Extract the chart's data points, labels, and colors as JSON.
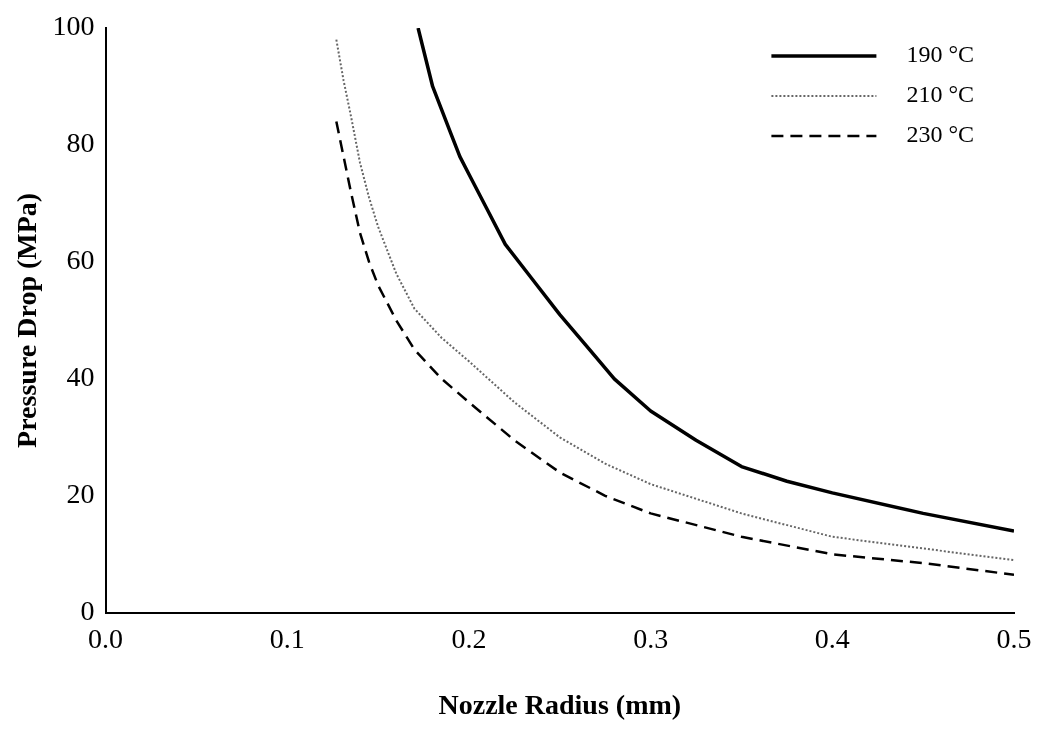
{
  "chart_data": {
    "type": "line",
    "xlabel": "Nozzle Radius (mm)",
    "ylabel": "Pressure Drop (MPa)",
    "xlim": [
      0,
      0.5
    ],
    "ylim": [
      0,
      100
    ],
    "xticks": [
      {
        "value": 0,
        "label": "0.0"
      },
      0.1,
      0.2,
      0.3,
      0.4,
      0.5
    ],
    "yticks": [
      0,
      20,
      40,
      60,
      80,
      100
    ],
    "grid": false,
    "legend": "top right",
    "marker": "none",
    "series": [
      {
        "name": "190 °C",
        "color": "#000000",
        "line_style": "solid",
        "x": [
          0.172,
          0.176,
          0.18,
          0.185,
          0.19,
          0.195,
          0.2,
          0.21,
          0.22,
          0.235,
          0.25,
          0.265,
          0.28,
          0.3,
          0.325,
          0.35,
          0.375,
          0.4,
          0.45,
          0.5
        ],
        "values": [
          100,
          95,
          90,
          86,
          82,
          78,
          75,
          69,
          63,
          57,
          51,
          45.5,
          40,
          34.5,
          29.5,
          25,
          22.5,
          20.5,
          17,
          14
        ]
      },
      {
        "name": "210 °C",
        "color": "#666666",
        "line_style": "dotted",
        "x": [
          0.127,
          0.131,
          0.135,
          0.14,
          0.145,
          0.15,
          0.16,
          0.17,
          0.185,
          0.2,
          0.225,
          0.25,
          0.275,
          0.3,
          0.35,
          0.4,
          0.45,
          0.5
        ],
        "values": [
          98,
          91,
          85,
          77,
          71,
          66,
          58,
          52,
          47,
          43,
          36,
          30,
          25.5,
          22,
          17,
          13,
          11,
          9
        ]
      },
      {
        "name": "230 °C",
        "color": "#000000",
        "line_style": "dashed",
        "x": [
          0.127,
          0.131,
          0.135,
          0.14,
          0.145,
          0.15,
          0.16,
          0.17,
          0.185,
          0.2,
          0.225,
          0.25,
          0.275,
          0.3,
          0.35,
          0.4,
          0.45,
          0.5
        ],
        "values": [
          84,
          78,
          72,
          65,
          60,
          56,
          50,
          45,
          40,
          36,
          29.5,
          24,
          20,
          17,
          13,
          10,
          8.5,
          6.5
        ]
      }
    ]
  }
}
